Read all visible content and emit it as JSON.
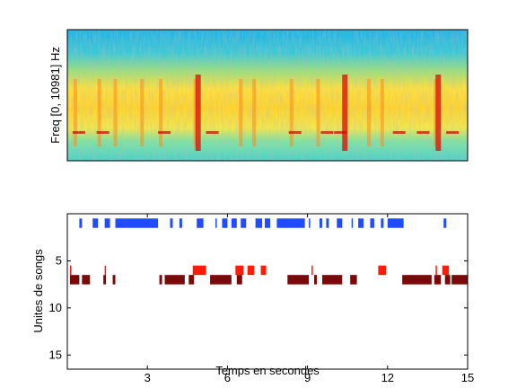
{
  "chart_data": [
    {
      "type": "heatmap",
      "ylabel": "Freq [0, 10981] Hz",
      "xlim": [
        0,
        15
      ],
      "ylim": [
        0,
        10981
      ],
      "xticks_shown": false,
      "yticks_shown": false,
      "colormap": "jet",
      "vertical_bright_bands_seconds": [
        0.3,
        1.2,
        1.8,
        2.8,
        3.5,
        4.8,
        6.5,
        7.0,
        8.4,
        9.4,
        11.3,
        11.8,
        13.8
      ],
      "strong_events_seconds": [
        4.9,
        10.4,
        13.9
      ]
    },
    {
      "type": "scatter",
      "title": "",
      "xlabel": "Temps en secondes",
      "ylabel": "Unites de songs",
      "xlim": [
        0,
        15
      ],
      "ylim": [
        0,
        16.5
      ],
      "y_reversed": true,
      "xticks": [
        3,
        6,
        9,
        12,
        15
      ],
      "yticks": [
        5,
        10,
        15
      ],
      "grid": false,
      "series": [
        {
          "color": "#1f4cff",
          "unit": 1,
          "segments": [
            [
              0.45,
              0.55
            ],
            [
              0.95,
              1.15
            ],
            [
              1.4,
              1.6
            ],
            [
              1.8,
              3.4
            ],
            [
              3.85,
              3.95
            ],
            [
              4.2,
              4.3
            ],
            [
              4.85,
              5.1
            ],
            [
              5.55,
              5.6
            ],
            [
              5.8,
              6.0
            ],
            [
              6.15,
              6.35
            ],
            [
              6.5,
              6.7
            ],
            [
              7.05,
              7.3
            ],
            [
              7.4,
              7.6
            ],
            [
              7.85,
              8.9
            ],
            [
              9.05,
              9.1
            ],
            [
              9.45,
              9.55
            ],
            [
              9.7,
              9.8
            ],
            [
              10.1,
              10.3
            ],
            [
              10.65,
              10.7
            ],
            [
              10.9,
              11.1
            ],
            [
              11.35,
              11.5
            ],
            [
              11.75,
              11.85
            ],
            [
              12.0,
              12.6
            ],
            [
              14.1,
              14.2
            ]
          ]
        },
        {
          "color": "#ff1a0a",
          "unit": 6,
          "segments": [
            [
              0.1,
              0.15
            ],
            [
              1.4,
              1.45
            ],
            [
              4.7,
              5.2
            ],
            [
              6.3,
              6.6
            ],
            [
              6.75,
              7.0
            ],
            [
              7.25,
              7.45
            ],
            [
              9.15,
              9.2
            ],
            [
              11.65,
              11.95
            ],
            [
              13.8,
              13.85
            ],
            [
              14.05,
              14.3
            ]
          ]
        },
        {
          "color": "#7a0a0a",
          "unit": 7,
          "segments": [
            [
              0.1,
              0.45
            ],
            [
              0.55,
              0.85
            ],
            [
              1.35,
              1.45
            ],
            [
              1.7,
              1.8
            ],
            [
              3.45,
              3.55
            ],
            [
              3.65,
              4.4
            ],
            [
              4.55,
              4.75
            ],
            [
              5.35,
              6.15
            ],
            [
              6.35,
              6.55
            ],
            [
              8.25,
              9.05
            ],
            [
              9.25,
              9.35
            ],
            [
              9.55,
              10.3
            ],
            [
              10.6,
              10.85
            ],
            [
              12.55,
              13.65
            ],
            [
              13.75,
              14.0
            ],
            [
              14.15,
              14.35
            ],
            [
              14.4,
              15.0
            ]
          ]
        }
      ]
    }
  ]
}
